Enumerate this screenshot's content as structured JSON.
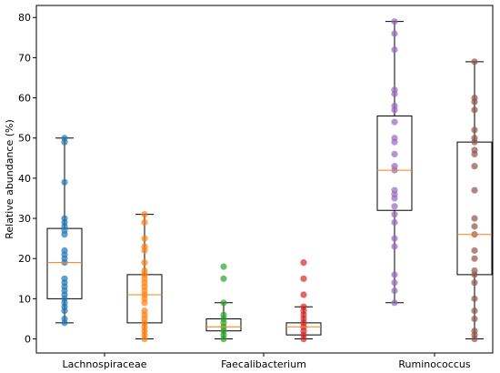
{
  "chart_data": {
    "type": "box",
    "title": "",
    "xlabel": "",
    "ylabel": "Relative abundance (%)",
    "ylim": [
      -3.5,
      83
    ],
    "yticks": [
      0,
      10,
      20,
      30,
      40,
      50,
      60,
      70,
      80
    ],
    "grid": false,
    "legend": "none",
    "categories": [
      "Lachnospiraceae",
      "Faecalibacterium",
      "Ruminococcus"
    ],
    "groups": [
      {
        "category": "Lachnospiraceae",
        "boxes": [
          {
            "color": "#1f77b4",
            "whisker_low": 4,
            "q1": 10,
            "median": 19,
            "q3": 27.5,
            "whisker_high": 50,
            "points": [
              4,
              5,
              7,
              8,
              9,
              10,
              11,
              12,
              13,
              14,
              15,
              19,
              20,
              21,
              22,
              26,
              27,
              28,
              29,
              30,
              39,
              49,
              50
            ]
          },
          {
            "color": "#ff7f0e",
            "whisker_low": 0,
            "q1": 4,
            "median": 11,
            "q3": 16,
            "whisker_high": 31,
            "points": [
              0,
              1,
              2,
              3,
              4,
              5,
              6,
              7,
              9,
              10,
              11,
              12,
              13,
              14,
              15,
              16,
              17,
              19,
              22,
              23,
              25,
              29,
              31
            ]
          }
        ]
      },
      {
        "category": "Faecalibacterium",
        "boxes": [
          {
            "color": "#2ca02c",
            "whisker_low": 0,
            "q1": 2,
            "median": 3,
            "q3": 5,
            "whisker_high": 9,
            "points": [
              0,
              1,
              2,
              3,
              4,
              5,
              6,
              9,
              15,
              18
            ]
          },
          {
            "color": "#d62728",
            "whisker_low": 0,
            "q1": 1,
            "median": 3,
            "q3": 4,
            "whisker_high": 8,
            "points": [
              0,
              1,
              2,
              3,
              4,
              5,
              6,
              7,
              8,
              11,
              15,
              19
            ]
          }
        ]
      },
      {
        "category": "Ruminococcus",
        "boxes": [
          {
            "color": "#9467bd",
            "whisker_low": 9,
            "q1": 32,
            "median": 42,
            "q3": 55.5,
            "whisker_high": 79,
            "points": [
              9,
              12,
              14,
              16,
              23,
              25,
              29,
              31,
              33,
              35,
              36,
              37,
              42,
              43,
              46,
              49,
              50,
              54,
              57,
              58,
              61,
              62,
              72,
              76,
              79
            ]
          },
          {
            "color": "#8c564b",
            "whisker_low": 0,
            "q1": 16,
            "median": 26,
            "q3": 49,
            "whisker_high": 69,
            "points": [
              0,
              1,
              2,
              5,
              7,
              10,
              14,
              16,
              17,
              20,
              22,
              26,
              28,
              30,
              37,
              43,
              46,
              47,
              49,
              50,
              52,
              57,
              59,
              60,
              69
            ]
          }
        ]
      }
    ],
    "median_color": "#ff7f0e",
    "box_edge_color": "#000000"
  }
}
